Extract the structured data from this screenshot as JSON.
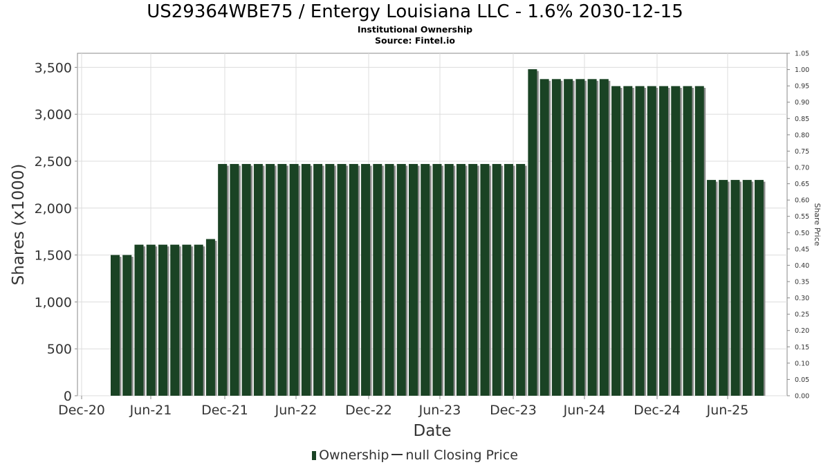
{
  "title": "US29364WBE75 / Entergy Louisiana LLC - 1.6% 2030-12-15",
  "subtitle": "Institutional Ownership",
  "source": "Source: Fintel.io",
  "legend": {
    "ownership": "Ownership",
    "price": "null Closing Price"
  },
  "colors": {
    "bar": "#1a4324",
    "bar_shadow": "#8c8c8c",
    "grid": "#dcdcdc",
    "axis": "#888888"
  },
  "chart_data": {
    "type": "bar",
    "xlabel": "Date",
    "ylabel": "Shares (x1000)",
    "y2label": "Share Price",
    "ylim": [
      0,
      3650
    ],
    "y2lim": [
      0,
      1.05
    ],
    "yticks": [
      "0",
      "500",
      "1,000",
      "1,500",
      "2,000",
      "2,500",
      "3,000",
      "3,500"
    ],
    "y2ticks": [
      "0.00",
      "0.05",
      "0.10",
      "0.15",
      "0.20",
      "0.25",
      "0.30",
      "0.35",
      "0.40",
      "0.45",
      "0.50",
      "0.55",
      "0.60",
      "0.65",
      "0.70",
      "0.75",
      "0.80",
      "0.85",
      "0.90",
      "0.95",
      "1.00",
      "1.05"
    ],
    "xticks": [
      "Dec-20",
      "Jun-21",
      "Dec-21",
      "Jun-22",
      "Dec-22",
      "Jun-23",
      "Dec-23",
      "Jun-24",
      "Dec-24",
      "Jun-25"
    ],
    "grid": true,
    "legend_position": "bottom",
    "series": [
      {
        "name": "Ownership",
        "values": [
          1500,
          1500,
          1610,
          1610,
          1610,
          1610,
          1610,
          1610,
          1670,
          2470,
          2470,
          2470,
          2470,
          2470,
          2470,
          2470,
          2470,
          2470,
          2470,
          2470,
          2470,
          2470,
          2470,
          2470,
          2470,
          2470,
          2470,
          2470,
          2470,
          2470,
          2470,
          2470,
          2470,
          2470,
          2470,
          3480,
          3375,
          3375,
          3375,
          3375,
          3375,
          3375,
          3300,
          3300,
          3300,
          3300,
          3300,
          3300,
          3300,
          3300,
          2300,
          2300,
          2300,
          2300,
          2300
        ]
      }
    ]
  }
}
